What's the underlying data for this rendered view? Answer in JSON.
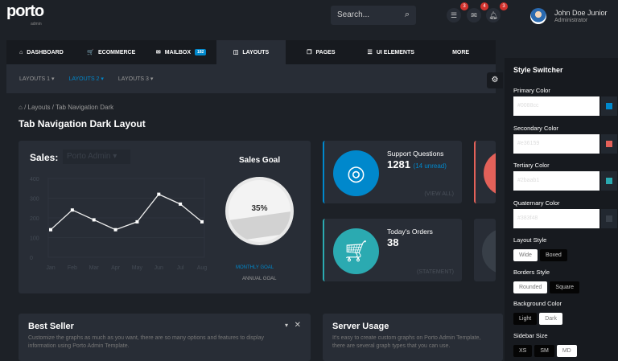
{
  "header": {
    "logo": "porto",
    "logo_sub": "admin",
    "search_placeholder": "Search...",
    "notifications": [
      {
        "icon": "list-icon",
        "count": "3"
      },
      {
        "icon": "envelope-icon",
        "count": "4"
      },
      {
        "icon": "bell-icon",
        "count": "3"
      }
    ],
    "user_name": "John Doe Junior",
    "user_role": "Administrator"
  },
  "nav": {
    "items": [
      {
        "label": "DASHBOARD",
        "icon": "⌂"
      },
      {
        "label": "ECOMMERCE",
        "icon": "🛒"
      },
      {
        "label": "MAILBOX",
        "icon": "✉",
        "badge": "182"
      },
      {
        "label": "LAYOUTS",
        "icon": "◫",
        "active": true
      },
      {
        "label": "PAGES",
        "icon": "❐"
      },
      {
        "label": "UI ELEMENTS",
        "icon": "☰"
      },
      {
        "label": "MORE",
        "icon": ""
      }
    ]
  },
  "subnav": [
    "LAYOUTS 1 ▾",
    "LAYOUTS 2 ▾",
    "LAYOUTS 3 ▾"
  ],
  "breadcrumb": [
    "Layouts",
    "Tab Navigation Dark"
  ],
  "page_title": "Tab Navigation Dark Layout",
  "sales": {
    "title": "Sales:",
    "select": "Porto Admin ▾",
    "goal_title": "Sales Goal",
    "goal_value": "35%",
    "goal_fraction": 0.35,
    "monthly": "MONTHLY GOAL",
    "annual": "ANNUAL GOAL"
  },
  "chart_data": {
    "type": "line",
    "categories": [
      "Jan",
      "Feb",
      "Mar",
      "Apr",
      "May",
      "Jun",
      "Jul",
      "Aug"
    ],
    "values": [
      140,
      240,
      190,
      140,
      180,
      320,
      270,
      180
    ],
    "ylim": [
      0,
      400
    ],
    "yticks": [
      "0",
      "100",
      "200",
      "300",
      "400"
    ],
    "grid": true
  },
  "stats": [
    {
      "label": "Support Questions",
      "value": "1281",
      "extra": "(14 unread)",
      "link": "(VIEW ALL)",
      "color": "#0088cc"
    },
    {
      "label": "Today's Orders",
      "value": "38",
      "extra": "",
      "link": "(STATEMENT)",
      "color": "#2baab1"
    }
  ],
  "panels": [
    {
      "title": "Best Seller",
      "text": "Customize the graphs as much as you want, there are so many options and features to display information using Porto Admin Template."
    },
    {
      "title": "Server Usage",
      "text": "It's easy to create custom graphs on Porto Admin Template, there are several graph types that you can use."
    }
  ],
  "switcher": {
    "title": "Style Switcher",
    "colors": [
      {
        "label": "Primary Color",
        "value": "#0088cc",
        "swatch": "#0088cc"
      },
      {
        "label": "Secondary Color",
        "value": "#e36159",
        "swatch": "#e36159"
      },
      {
        "label": "Tertiary Color",
        "value": "#2baab1",
        "swatch": "#2baab1"
      },
      {
        "label": "Quaternary Color",
        "value": "#383f48",
        "swatch": "#383f48"
      }
    ],
    "groups": [
      {
        "label": "Layout Style",
        "options": [
          "Wide",
          "Boxed"
        ],
        "selected": "Wide"
      },
      {
        "label": "Borders Style",
        "options": [
          "Rounded",
          "Square"
        ],
        "selected": "Rounded"
      },
      {
        "label": "Background Color",
        "options": [
          "Light",
          "Dark"
        ],
        "selected": "Dark"
      },
      {
        "label": "Sidebar Size",
        "options": [
          "XS",
          "SM",
          "MD"
        ],
        "selected": "MD"
      }
    ]
  }
}
